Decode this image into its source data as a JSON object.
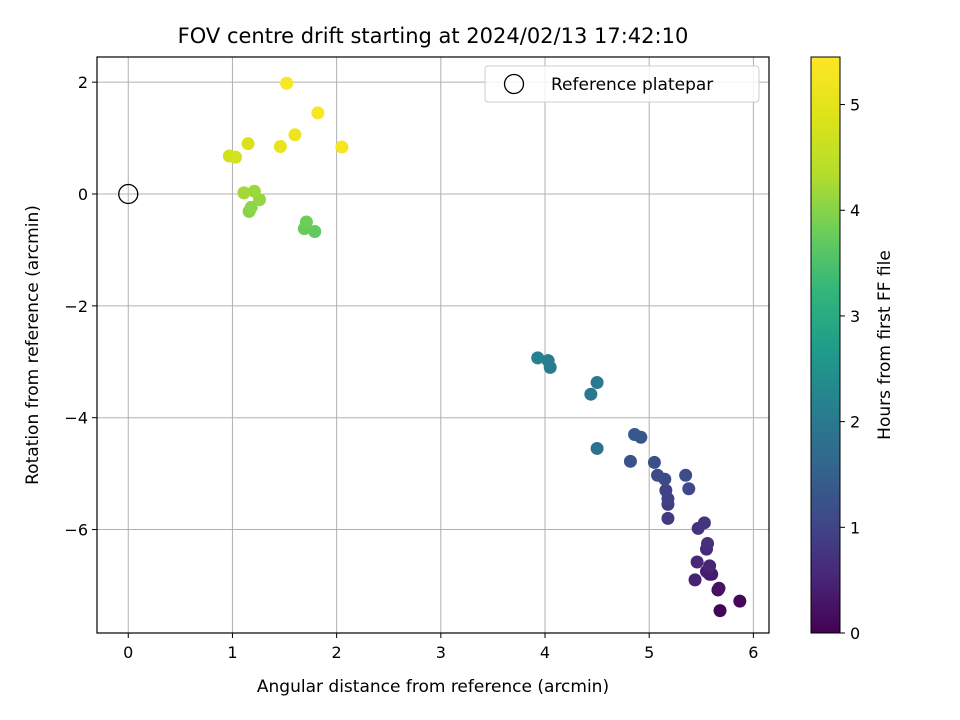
{
  "chart_data": {
    "type": "scatter",
    "title": "FOV centre drift starting at 2024/02/13 17:42:10",
    "xlabel": "Angular distance from reference (arcmin)",
    "ylabel": "Rotation from reference (arcmin)",
    "xlim": [
      -0.3,
      6.15
    ],
    "ylim": [
      -7.85,
      2.45
    ],
    "xticks": [
      0,
      1,
      2,
      3,
      4,
      5,
      6
    ],
    "yticks": [
      2,
      0,
      -2,
      -4,
      -6
    ],
    "grid": true,
    "legend": {
      "placement": "top-right",
      "entries": [
        "Reference platepar"
      ]
    },
    "reference_point": {
      "x": 0,
      "y": 0,
      "label": "Reference platepar"
    },
    "colorbar": {
      "label": "Hours from first FF file",
      "colormap": "viridis",
      "range": [
        0,
        5.45
      ],
      "ticks": [
        0,
        1,
        2,
        3,
        4,
        5
      ]
    },
    "series": [
      {
        "points": [
          {
            "x": 5.68,
            "y": -7.45,
            "c": 0.05
          },
          {
            "x": 5.87,
            "y": -7.28,
            "c": 0.1
          },
          {
            "x": 5.66,
            "y": -7.08,
            "c": 0.2
          },
          {
            "x": 5.67,
            "y": -7.05,
            "c": 0.25
          },
          {
            "x": 5.58,
            "y": -6.8,
            "c": 0.3
          },
          {
            "x": 5.6,
            "y": -6.8,
            "c": 0.35
          },
          {
            "x": 5.55,
            "y": -6.75,
            "c": 0.4
          },
          {
            "x": 5.44,
            "y": -6.9,
            "c": 0.45
          },
          {
            "x": 5.58,
            "y": -6.65,
            "c": 0.5
          },
          {
            "x": 5.46,
            "y": -6.58,
            "c": 0.55
          },
          {
            "x": 5.55,
            "y": -6.35,
            "c": 0.6
          },
          {
            "x": 5.56,
            "y": -6.25,
            "c": 0.65
          },
          {
            "x": 5.47,
            "y": -5.98,
            "c": 0.7
          },
          {
            "x": 5.53,
            "y": -5.88,
            "c": 0.75
          },
          {
            "x": 5.18,
            "y": -5.8,
            "c": 0.85
          },
          {
            "x": 5.18,
            "y": -5.55,
            "c": 0.9
          },
          {
            "x": 5.18,
            "y": -5.45,
            "c": 0.95
          },
          {
            "x": 5.16,
            "y": -5.3,
            "c": 1.0
          },
          {
            "x": 5.38,
            "y": -5.27,
            "c": 1.05
          },
          {
            "x": 5.15,
            "y": -5.1,
            "c": 1.1
          },
          {
            "x": 5.08,
            "y": -5.03,
            "c": 1.1
          },
          {
            "x": 5.35,
            "y": -5.03,
            "c": 1.15
          },
          {
            "x": 5.05,
            "y": -4.8,
            "c": 1.2
          },
          {
            "x": 4.82,
            "y": -4.78,
            "c": 1.25
          },
          {
            "x": 4.92,
            "y": -4.35,
            "c": 1.3
          },
          {
            "x": 4.86,
            "y": -4.3,
            "c": 1.35
          },
          {
            "x": 4.5,
            "y": -4.55,
            "c": 1.85
          },
          {
            "x": 4.44,
            "y": -3.58,
            "c": 1.95
          },
          {
            "x": 4.5,
            "y": -3.37,
            "c": 2.0
          },
          {
            "x": 4.05,
            "y": -3.1,
            "c": 2.05
          },
          {
            "x": 4.03,
            "y": -2.98,
            "c": 2.1
          },
          {
            "x": 3.93,
            "y": -2.93,
            "c": 2.15
          },
          {
            "x": 1.79,
            "y": -0.67,
            "c": 3.7
          },
          {
            "x": 1.69,
            "y": -0.62,
            "c": 3.75
          },
          {
            "x": 1.71,
            "y": -0.5,
            "c": 3.8
          },
          {
            "x": 1.16,
            "y": -0.31,
            "c": 4.0
          },
          {
            "x": 1.18,
            "y": -0.24,
            "c": 4.05
          },
          {
            "x": 1.26,
            "y": -0.1,
            "c": 4.1
          },
          {
            "x": 1.21,
            "y": 0.05,
            "c": 4.15
          },
          {
            "x": 1.11,
            "y": 0.02,
            "c": 4.2
          },
          {
            "x": 0.97,
            "y": 0.68,
            "c": 4.7
          },
          {
            "x": 1.03,
            "y": 0.66,
            "c": 4.75
          },
          {
            "x": 1.15,
            "y": 0.9,
            "c": 4.85
          },
          {
            "x": 1.46,
            "y": 0.85,
            "c": 5.1
          },
          {
            "x": 1.6,
            "y": 1.06,
            "c": 5.2
          },
          {
            "x": 2.05,
            "y": 0.84,
            "c": 5.3
          },
          {
            "x": 1.82,
            "y": 1.45,
            "c": 5.35
          },
          {
            "x": 1.52,
            "y": 1.98,
            "c": 5.4
          }
        ]
      }
    ]
  }
}
